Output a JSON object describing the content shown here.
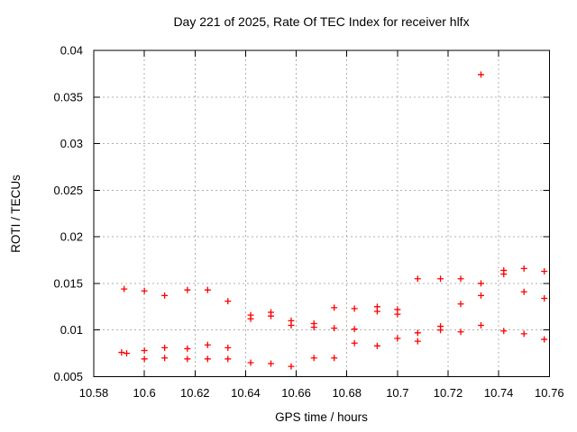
{
  "window": {
    "title": "Day 221 of 2025, Rate Of TEC Index for receiver hlfx"
  },
  "style": {
    "background": "#ffffff",
    "border_color": "#000000",
    "grid_color": "#b0b0b0",
    "text_color": "#000000",
    "marker_color": "#ff0000"
  },
  "chart_data": {
    "type": "scatter",
    "title": "Day 221 of 2025, Rate Of TEC Index for receiver hlfx",
    "xlabel": "GPS time / hours",
    "ylabel": "ROTI / TECUs",
    "xlim": [
      10.58,
      10.76
    ],
    "ylim": [
      0.005,
      0.04
    ],
    "xticks": [
      10.58,
      10.6,
      10.62,
      10.64,
      10.66,
      10.68,
      10.7,
      10.72,
      10.74,
      10.76
    ],
    "xtick_labels": [
      "10.58",
      "10.6",
      "10.62",
      "10.64",
      "10.66",
      "10.68",
      "10.7",
      "10.72",
      "10.74",
      "10.76"
    ],
    "yticks": [
      0.005,
      0.01,
      0.015,
      0.02,
      0.025,
      0.03,
      0.035,
      0.04
    ],
    "ytick_labels": [
      "0.005",
      "0.01",
      "0.015",
      "0.02",
      "0.025",
      "0.03",
      "0.035",
      "0.04"
    ],
    "grid": true,
    "legend": "none",
    "marker": {
      "shape": "plus",
      "color": "#ff0000",
      "size": 7
    },
    "series": [
      {
        "name": "ROTI",
        "points": [
          [
            10.592,
            0.0144
          ],
          [
            10.591,
            0.0076
          ],
          [
            10.593,
            0.0075
          ],
          [
            10.6,
            0.0142
          ],
          [
            10.6,
            0.0078
          ],
          [
            10.6,
            0.0069
          ],
          [
            10.608,
            0.0137
          ],
          [
            10.608,
            0.0081
          ],
          [
            10.608,
            0.007
          ],
          [
            10.617,
            0.0143
          ],
          [
            10.617,
            0.008
          ],
          [
            10.617,
            0.0069
          ],
          [
            10.625,
            0.0143
          ],
          [
            10.625,
            0.0084
          ],
          [
            10.625,
            0.0069
          ],
          [
            10.633,
            0.0131
          ],
          [
            10.633,
            0.0081
          ],
          [
            10.633,
            0.0069
          ],
          [
            10.642,
            0.0116
          ],
          [
            10.642,
            0.0112
          ],
          [
            10.642,
            0.0065
          ],
          [
            10.65,
            0.0119
          ],
          [
            10.65,
            0.0115
          ],
          [
            10.65,
            0.0064
          ],
          [
            10.658,
            0.011
          ],
          [
            10.658,
            0.0105
          ],
          [
            10.658,
            0.0061
          ],
          [
            10.667,
            0.0107
          ],
          [
            10.667,
            0.0103
          ],
          [
            10.667,
            0.007
          ],
          [
            10.675,
            0.0124
          ],
          [
            10.675,
            0.0102
          ],
          [
            10.675,
            0.007
          ],
          [
            10.683,
            0.0123
          ],
          [
            10.683,
            0.0101
          ],
          [
            10.683,
            0.0086
          ],
          [
            10.692,
            0.0125
          ],
          [
            10.692,
            0.012
          ],
          [
            10.692,
            0.0083
          ],
          [
            10.7,
            0.0122
          ],
          [
            10.7,
            0.0117
          ],
          [
            10.7,
            0.0091
          ],
          [
            10.708,
            0.0155
          ],
          [
            10.708,
            0.0097
          ],
          [
            10.708,
            0.0088
          ],
          [
            10.717,
            0.0155
          ],
          [
            10.717,
            0.0104
          ],
          [
            10.717,
            0.01
          ],
          [
            10.725,
            0.0155
          ],
          [
            10.725,
            0.0128
          ],
          [
            10.725,
            0.0098
          ],
          [
            10.733,
            0.0374
          ],
          [
            10.733,
            0.015
          ],
          [
            10.733,
            0.0137
          ],
          [
            10.733,
            0.0105
          ],
          [
            10.742,
            0.0164
          ],
          [
            10.742,
            0.016
          ],
          [
            10.742,
            0.0099
          ],
          [
            10.75,
            0.0166
          ],
          [
            10.75,
            0.0141
          ],
          [
            10.75,
            0.0096
          ],
          [
            10.758,
            0.0163
          ],
          [
            10.758,
            0.0134
          ],
          [
            10.758,
            0.009
          ]
        ]
      }
    ]
  }
}
